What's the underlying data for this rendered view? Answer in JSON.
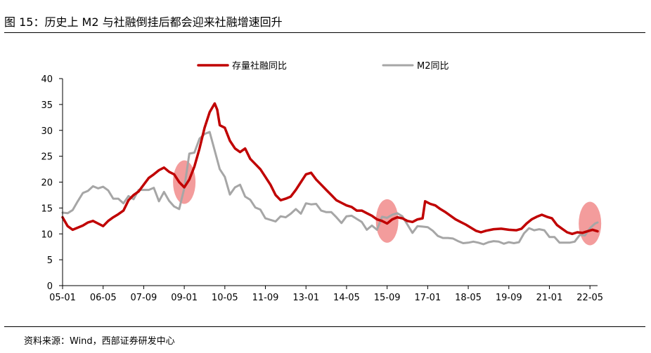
{
  "title": "图 15：历史上 M2 与社融倒挂后都会迎来社融增速回升",
  "source": "资料来源：Wind，西部证券研发中心",
  "chart_data": {
    "type": "line",
    "ylim": [
      0,
      40
    ],
    "yticks": [
      0,
      5,
      10,
      15,
      20,
      25,
      30,
      35,
      40
    ],
    "xlim": [
      "2005-01",
      "2022-08"
    ],
    "xticks": [
      {
        "label": "05-01",
        "date": "2005-01"
      },
      {
        "label": "06-05",
        "date": "2006-05"
      },
      {
        "label": "07-09",
        "date": "2007-09"
      },
      {
        "label": "09-01",
        "date": "2009-01"
      },
      {
        "label": "10-05",
        "date": "2010-05"
      },
      {
        "label": "11-09",
        "date": "2011-09"
      },
      {
        "label": "13-01",
        "date": "2013-01"
      },
      {
        "label": "14-05",
        "date": "2014-05"
      },
      {
        "label": "15-09",
        "date": "2015-09"
      },
      {
        "label": "17-01",
        "date": "2017-01"
      },
      {
        "label": "18-05",
        "date": "2018-05"
      },
      {
        "label": "19-09",
        "date": "2019-09"
      },
      {
        "label": "21-01",
        "date": "2021-01"
      },
      {
        "label": "22-05",
        "date": "2022-05"
      }
    ],
    "grid": false,
    "legend_position": "top",
    "series": [
      {
        "name": "存量社融同比",
        "color": "#C00000",
        "points": [
          [
            "2005-01",
            13.2
          ],
          [
            "2005-03",
            11.5
          ],
          [
            "2005-05",
            10.8
          ],
          [
            "2005-07",
            11.2
          ],
          [
            "2005-09",
            11.6
          ],
          [
            "2005-11",
            12.2
          ],
          [
            "2006-01",
            12.5
          ],
          [
            "2006-03",
            12.0
          ],
          [
            "2006-05",
            11.5
          ],
          [
            "2006-07",
            12.5
          ],
          [
            "2006-09",
            13.2
          ],
          [
            "2006-11",
            13.8
          ],
          [
            "2007-01",
            14.5
          ],
          [
            "2007-03",
            16.5
          ],
          [
            "2007-05",
            17.5
          ],
          [
            "2007-07",
            18.2
          ],
          [
            "2007-09",
            19.5
          ],
          [
            "2007-11",
            20.8
          ],
          [
            "2008-01",
            21.5
          ],
          [
            "2008-03",
            22.3
          ],
          [
            "2008-05",
            22.8
          ],
          [
            "2008-07",
            22.0
          ],
          [
            "2008-09",
            21.5
          ],
          [
            "2008-11",
            20.0
          ],
          [
            "2009-01",
            19.0
          ],
          [
            "2009-03",
            20.5
          ],
          [
            "2009-05",
            23.0
          ],
          [
            "2009-07",
            26.5
          ],
          [
            "2009-09",
            30.5
          ],
          [
            "2009-11",
            33.5
          ],
          [
            "2010-01",
            35.2
          ],
          [
            "2010-02",
            34.0
          ],
          [
            "2010-03",
            31.0
          ],
          [
            "2010-05",
            30.5
          ],
          [
            "2010-07",
            28.0
          ],
          [
            "2010-09",
            26.5
          ],
          [
            "2010-11",
            25.8
          ],
          [
            "2011-01",
            26.5
          ],
          [
            "2011-03",
            24.5
          ],
          [
            "2011-05",
            23.5
          ],
          [
            "2011-07",
            22.5
          ],
          [
            "2011-09",
            21.0
          ],
          [
            "2011-11",
            19.5
          ],
          [
            "2012-01",
            17.5
          ],
          [
            "2012-03",
            16.5
          ],
          [
            "2012-05",
            16.8
          ],
          [
            "2012-07",
            17.2
          ],
          [
            "2012-09",
            18.5
          ],
          [
            "2012-11",
            20.0
          ],
          [
            "2013-01",
            21.5
          ],
          [
            "2013-03",
            21.8
          ],
          [
            "2013-05",
            20.5
          ],
          [
            "2013-07",
            19.5
          ],
          [
            "2013-09",
            18.5
          ],
          [
            "2013-11",
            17.5
          ],
          [
            "2014-01",
            16.5
          ],
          [
            "2014-03",
            16.0
          ],
          [
            "2014-05",
            15.5
          ],
          [
            "2014-07",
            15.2
          ],
          [
            "2014-09",
            14.5
          ],
          [
            "2014-11",
            14.5
          ],
          [
            "2015-01",
            14.0
          ],
          [
            "2015-03",
            13.5
          ],
          [
            "2015-05",
            12.8
          ],
          [
            "2015-07",
            12.5
          ],
          [
            "2015-09",
            12.0
          ],
          [
            "2015-11",
            12.8
          ],
          [
            "2016-01",
            13.2
          ],
          [
            "2016-03",
            13.0
          ],
          [
            "2016-05",
            12.5
          ],
          [
            "2016-07",
            12.3
          ],
          [
            "2016-09",
            12.8
          ],
          [
            "2016-11",
            13.0
          ],
          [
            "2016-12",
            16.3
          ],
          [
            "2017-02",
            15.8
          ],
          [
            "2017-04",
            15.5
          ],
          [
            "2017-06",
            14.8
          ],
          [
            "2017-08",
            14.2
          ],
          [
            "2017-10",
            13.5
          ],
          [
            "2017-12",
            12.8
          ],
          [
            "2018-02",
            12.3
          ],
          [
            "2018-04",
            11.8
          ],
          [
            "2018-06",
            11.2
          ],
          [
            "2018-08",
            10.6
          ],
          [
            "2018-10",
            10.3
          ],
          [
            "2018-12",
            10.6
          ],
          [
            "2019-03",
            10.9
          ],
          [
            "2019-06",
            11.0
          ],
          [
            "2019-09",
            10.8
          ],
          [
            "2019-12",
            10.7
          ],
          [
            "2020-02",
            11.0
          ],
          [
            "2020-04",
            12.0
          ],
          [
            "2020-06",
            12.8
          ],
          [
            "2020-08",
            13.3
          ],
          [
            "2020-10",
            13.7
          ],
          [
            "2020-12",
            13.3
          ],
          [
            "2021-02",
            13.0
          ],
          [
            "2021-04",
            11.7
          ],
          [
            "2021-06",
            11.0
          ],
          [
            "2021-08",
            10.3
          ],
          [
            "2021-10",
            10.0
          ],
          [
            "2021-12",
            10.3
          ],
          [
            "2022-02",
            10.2
          ],
          [
            "2022-04",
            10.5
          ],
          [
            "2022-06",
            10.8
          ],
          [
            "2022-08",
            10.5
          ]
        ]
      },
      {
        "name": "M2同比",
        "color": "#A6A6A6",
        "points": [
          [
            "2005-01",
            14.1
          ],
          [
            "2005-03",
            14.0
          ],
          [
            "2005-05",
            14.6
          ],
          [
            "2005-07",
            16.3
          ],
          [
            "2005-09",
            17.9
          ],
          [
            "2005-11",
            18.3
          ],
          [
            "2006-01",
            19.2
          ],
          [
            "2006-03",
            18.8
          ],
          [
            "2006-05",
            19.1
          ],
          [
            "2006-07",
            18.4
          ],
          [
            "2006-09",
            16.8
          ],
          [
            "2006-11",
            16.8
          ],
          [
            "2007-01",
            15.9
          ],
          [
            "2007-03",
            17.3
          ],
          [
            "2007-05",
            16.7
          ],
          [
            "2007-07",
            18.5
          ],
          [
            "2007-09",
            18.5
          ],
          [
            "2007-11",
            18.5
          ],
          [
            "2008-01",
            18.9
          ],
          [
            "2008-03",
            16.3
          ],
          [
            "2008-05",
            18.1
          ],
          [
            "2008-07",
            16.4
          ],
          [
            "2008-09",
            15.3
          ],
          [
            "2008-11",
            14.8
          ],
          [
            "2009-01",
            18.8
          ],
          [
            "2009-03",
            25.5
          ],
          [
            "2009-05",
            25.7
          ],
          [
            "2009-07",
            28.4
          ],
          [
            "2009-09",
            29.3
          ],
          [
            "2009-11",
            29.7
          ],
          [
            "2010-01",
            26.1
          ],
          [
            "2010-03",
            22.5
          ],
          [
            "2010-05",
            21.0
          ],
          [
            "2010-07",
            17.6
          ],
          [
            "2010-09",
            19.0
          ],
          [
            "2010-11",
            19.5
          ],
          [
            "2011-01",
            17.2
          ],
          [
            "2011-03",
            16.6
          ],
          [
            "2011-05",
            15.1
          ],
          [
            "2011-07",
            14.7
          ],
          [
            "2011-09",
            13.0
          ],
          [
            "2011-11",
            12.7
          ],
          [
            "2012-01",
            12.4
          ],
          [
            "2012-03",
            13.4
          ],
          [
            "2012-05",
            13.2
          ],
          [
            "2012-07",
            13.9
          ],
          [
            "2012-09",
            14.8
          ],
          [
            "2012-11",
            13.9
          ],
          [
            "2013-01",
            15.9
          ],
          [
            "2013-03",
            15.7
          ],
          [
            "2013-05",
            15.8
          ],
          [
            "2013-07",
            14.5
          ],
          [
            "2013-09",
            14.2
          ],
          [
            "2013-11",
            14.2
          ],
          [
            "2014-01",
            13.2
          ],
          [
            "2014-03",
            12.1
          ],
          [
            "2014-05",
            13.4
          ],
          [
            "2014-07",
            13.5
          ],
          [
            "2014-09",
            12.9
          ],
          [
            "2014-11",
            12.3
          ],
          [
            "2015-01",
            10.8
          ],
          [
            "2015-03",
            11.6
          ],
          [
            "2015-05",
            10.8
          ],
          [
            "2015-07",
            13.3
          ],
          [
            "2015-09",
            13.1
          ],
          [
            "2015-11",
            13.7
          ],
          [
            "2016-01",
            14.0
          ],
          [
            "2016-03",
            13.4
          ],
          [
            "2016-05",
            11.8
          ],
          [
            "2016-07",
            10.2
          ],
          [
            "2016-09",
            11.5
          ],
          [
            "2016-11",
            11.4
          ],
          [
            "2017-01",
            11.3
          ],
          [
            "2017-03",
            10.6
          ],
          [
            "2017-05",
            9.6
          ],
          [
            "2017-07",
            9.2
          ],
          [
            "2017-09",
            9.2
          ],
          [
            "2017-11",
            9.1
          ],
          [
            "2018-01",
            8.6
          ],
          [
            "2018-03",
            8.2
          ],
          [
            "2018-05",
            8.3
          ],
          [
            "2018-07",
            8.5
          ],
          [
            "2018-09",
            8.3
          ],
          [
            "2018-11",
            8.0
          ],
          [
            "2019-01",
            8.4
          ],
          [
            "2019-03",
            8.6
          ],
          [
            "2019-05",
            8.5
          ],
          [
            "2019-07",
            8.1
          ],
          [
            "2019-09",
            8.4
          ],
          [
            "2019-11",
            8.2
          ],
          [
            "2020-01",
            8.4
          ],
          [
            "2020-03",
            10.1
          ],
          [
            "2020-05",
            11.1
          ],
          [
            "2020-07",
            10.7
          ],
          [
            "2020-09",
            10.9
          ],
          [
            "2020-11",
            10.7
          ],
          [
            "2021-01",
            9.4
          ],
          [
            "2021-03",
            9.4
          ],
          [
            "2021-05",
            8.3
          ],
          [
            "2021-07",
            8.3
          ],
          [
            "2021-09",
            8.3
          ],
          [
            "2021-11",
            8.5
          ],
          [
            "2022-01",
            9.8
          ],
          [
            "2022-03",
            9.7
          ],
          [
            "2022-05",
            11.1
          ],
          [
            "2022-07",
            12.0
          ],
          [
            "2022-08",
            12.2
          ]
        ]
      }
    ],
    "highlights": [
      {
        "date": "2009-01",
        "value": 20.0
      },
      {
        "date": "2015-09",
        "value": 12.5
      },
      {
        "date": "2022-05",
        "value": 12.0
      }
    ]
  }
}
